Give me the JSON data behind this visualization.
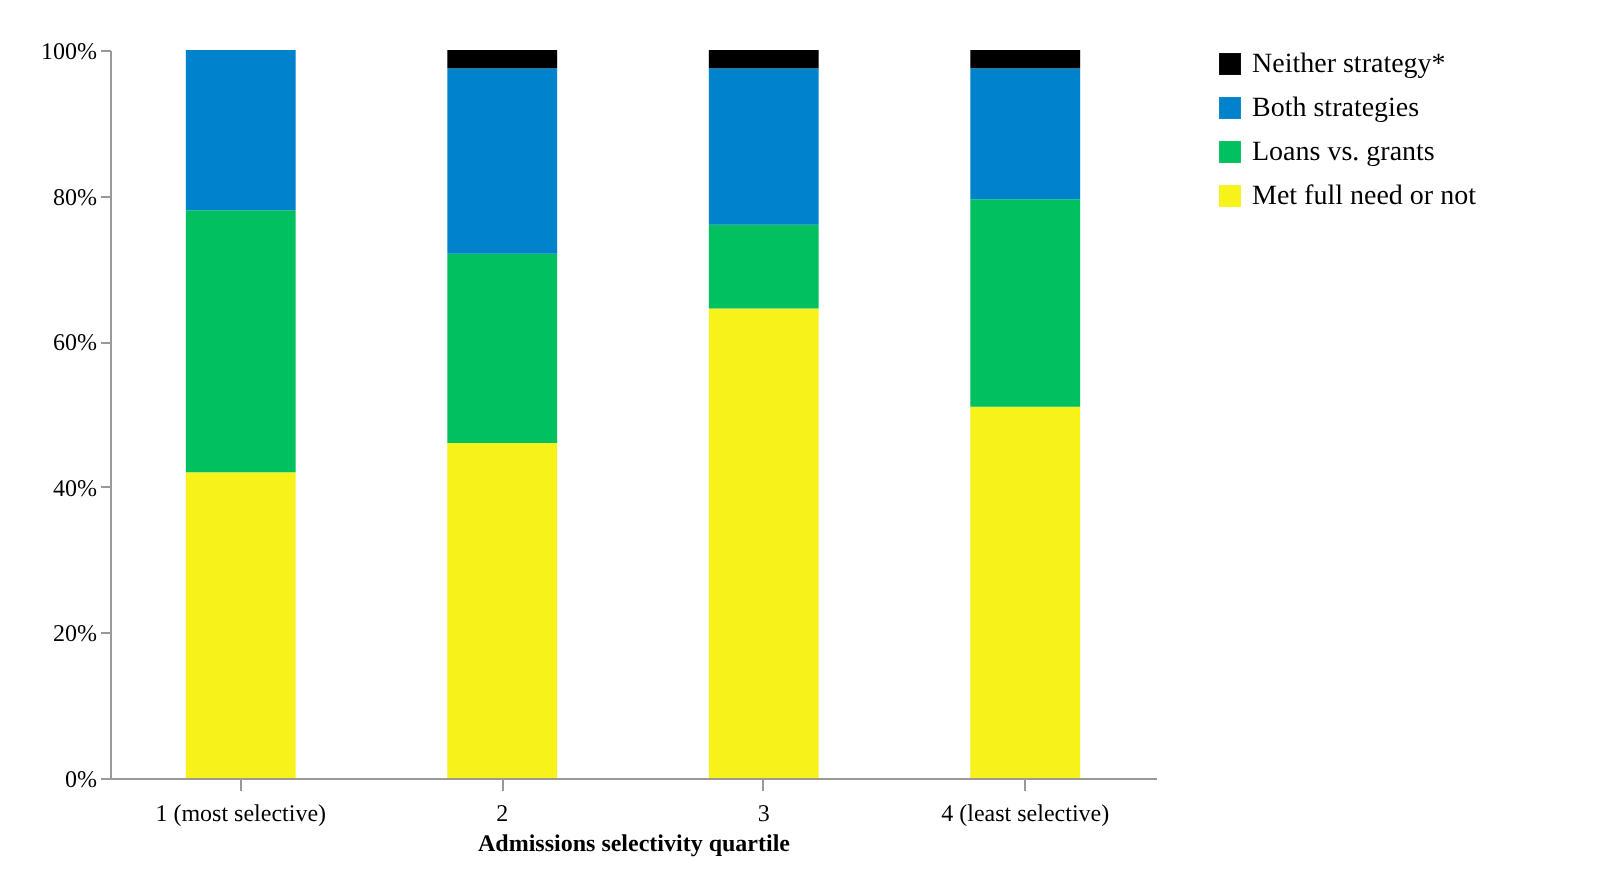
{
  "chart_data": {
    "type": "bar",
    "stacked": true,
    "xlabel": "Admissions selectivity quartile",
    "categories": [
      "1 (most selective)",
      "2",
      "3",
      "4 (least selective)"
    ],
    "series": [
      {
        "name": "Met full need or not",
        "color": "#f7f21a",
        "values": [
          42,
          46,
          64.5,
          51
        ]
      },
      {
        "name": "Loans vs. grants",
        "color": "#00c060",
        "values": [
          36,
          26,
          11.5,
          28.5
        ]
      },
      {
        "name": "Both strategies",
        "color": "#0083cc",
        "values": [
          22,
          25.5,
          21.5,
          18
        ]
      },
      {
        "name": "Neither strategy*",
        "color": "#000000",
        "values": [
          0,
          2.5,
          2.5,
          2.5
        ]
      }
    ],
    "ylim": [
      0,
      100
    ],
    "yticks": [
      {
        "value": 0,
        "label": "0%"
      },
      {
        "value": 20,
        "label": "20%"
      },
      {
        "value": 40,
        "label": "40%"
      },
      {
        "value": 60,
        "label": "60%"
      },
      {
        "value": 80,
        "label": "80%"
      },
      {
        "value": 100,
        "label": "100%"
      }
    ],
    "grid": false,
    "legend": "right"
  }
}
